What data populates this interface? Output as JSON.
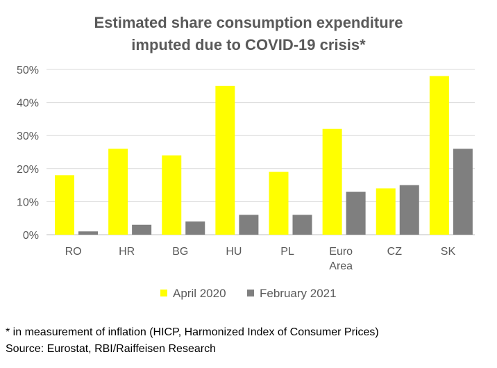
{
  "colors": {
    "april": "#ffff00",
    "february": "#7f7f7f",
    "grid": "#d9d9d9",
    "text": "#595959"
  },
  "chart_data": {
    "type": "bar",
    "title_lines": [
      "Estimated share consumption expenditure",
      "imputed due to COVID-19 crisis*"
    ],
    "categories": [
      [
        "RO"
      ],
      [
        "HR"
      ],
      [
        "BG"
      ],
      [
        "HU"
      ],
      [
        "PL"
      ],
      [
        "Euro",
        "Area"
      ],
      [
        "CZ"
      ],
      [
        "SK"
      ]
    ],
    "series": [
      {
        "name": "April 2020",
        "values": [
          18,
          26,
          24,
          45,
          19,
          32,
          14,
          48
        ]
      },
      {
        "name": "February 2021",
        "values": [
          1,
          3,
          4,
          6,
          6,
          13,
          15,
          26
        ]
      }
    ],
    "yticks": [
      "0%",
      "10%",
      "20%",
      "30%",
      "40%",
      "50%"
    ],
    "ylim": [
      0,
      50
    ],
    "grid": true,
    "legend_position": "bottom"
  },
  "footnotes": {
    "note": "* in measurement of inflation (HICP, Harmonized Index of Consumer Prices)",
    "source": "Source: Eurostat, RBI/Raiffeisen Research"
  }
}
